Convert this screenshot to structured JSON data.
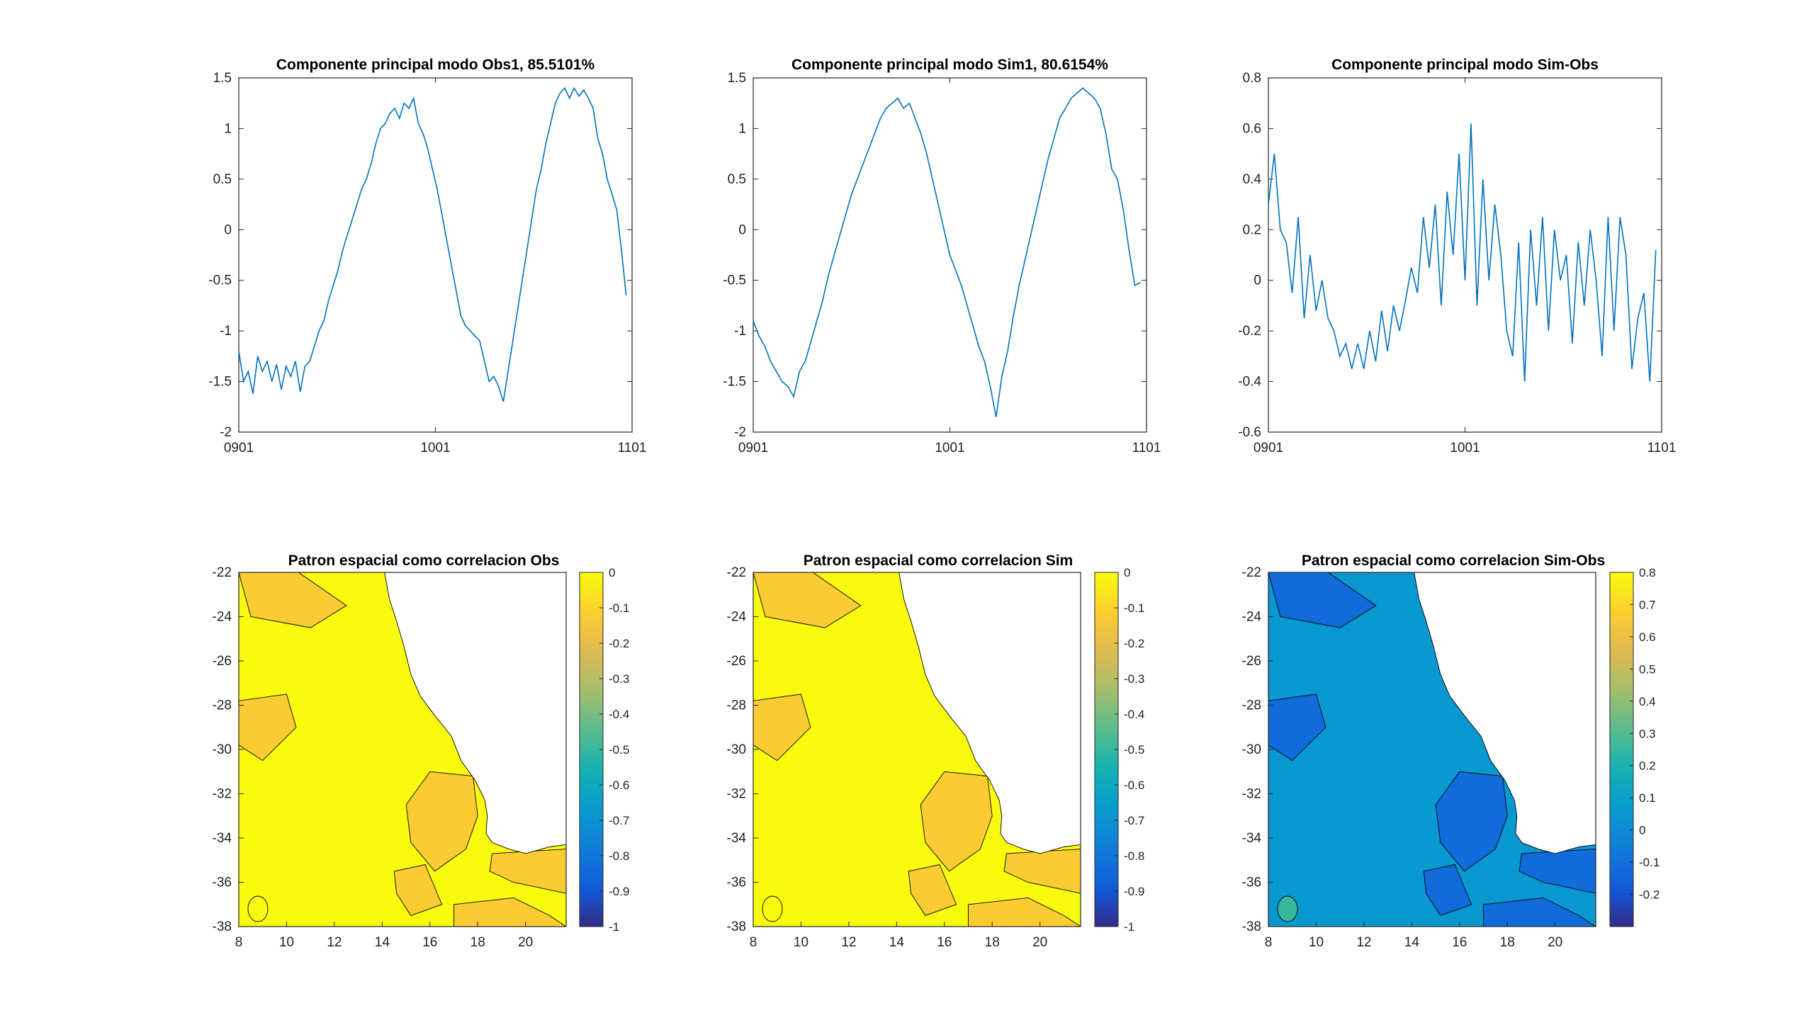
{
  "chart_data": [
    {
      "type": "line",
      "title": "Componente principal modo Obs1, 85.5101%",
      "xticks": [
        "0901",
        "1001",
        "1101"
      ],
      "ylim": [
        -2,
        1.5
      ],
      "yticks": [
        1.5,
        1,
        0.5,
        0,
        -0.5,
        -1,
        -1.5,
        -2
      ],
      "line_color": "#0072BD",
      "series": [
        {
          "x_start": "0901",
          "x_end": "1101",
          "values": [
            -1.2,
            -1.5,
            -1.4,
            -1.62,
            -1.25,
            -1.4,
            -1.3,
            -1.5,
            -1.33,
            -1.58,
            -1.35,
            -1.45,
            -1.3,
            -1.6,
            -1.35,
            -1.3,
            -1.15,
            -1.0,
            -0.9,
            -0.7,
            -0.55,
            -0.4,
            -0.2,
            -0.05,
            0.1,
            0.25,
            0.4,
            0.5,
            0.65,
            0.85,
            1.0,
            1.05,
            1.15,
            1.2,
            1.1,
            1.25,
            1.2,
            1.3,
            1.05,
            0.95,
            0.8,
            0.6,
            0.4,
            0.15,
            -0.1,
            -0.35,
            -0.6,
            -0.85,
            -0.95,
            -1.0,
            -1.05,
            -1.1,
            -1.3,
            -1.5,
            -1.45,
            -1.55,
            -1.7,
            -1.4,
            -1.1,
            -0.8,
            -0.5,
            -0.2,
            0.1,
            0.4,
            0.6,
            0.85,
            1.05,
            1.25,
            1.35,
            1.4,
            1.3,
            1.4,
            1.32,
            1.38,
            1.3,
            1.2,
            0.9,
            0.75,
            0.5,
            0.35,
            0.2,
            -0.2,
            -0.65
          ]
        }
      ]
    },
    {
      "type": "line",
      "title": "Componente principal modo Sim1, 80.6154%",
      "xticks": [
        "0901",
        "1001",
        "1101"
      ],
      "ylim": [
        -2,
        1.5
      ],
      "yticks": [
        1.5,
        1,
        0.5,
        0,
        -0.5,
        -1,
        -1.5,
        -2
      ],
      "line_color": "#0072BD",
      "series": [
        {
          "x_start": "0901",
          "x_end": "1101",
          "values": [
            -0.9,
            -1.05,
            -1.15,
            -1.3,
            -1.4,
            -1.5,
            -1.55,
            -1.65,
            -1.4,
            -1.3,
            -1.1,
            -0.9,
            -0.7,
            -0.45,
            -0.25,
            -0.05,
            0.15,
            0.35,
            0.5,
            0.65,
            0.8,
            0.95,
            1.1,
            1.2,
            1.25,
            1.3,
            1.2,
            1.25,
            1.1,
            0.95,
            0.75,
            0.5,
            0.25,
            0.0,
            -0.25,
            -0.4,
            -0.55,
            -0.75,
            -0.95,
            -1.15,
            -1.3,
            -1.55,
            -1.85,
            -1.45,
            -1.2,
            -0.85,
            -0.55,
            -0.3,
            -0.05,
            0.2,
            0.45,
            0.7,
            0.9,
            1.1,
            1.2,
            1.3,
            1.35,
            1.4,
            1.35,
            1.3,
            1.2,
            0.95,
            0.6,
            0.5,
            0.2,
            -0.2,
            -0.55,
            -0.52
          ]
        }
      ]
    },
    {
      "type": "line",
      "title": "Componente principal modo Sim-Obs",
      "xticks": [
        "0901",
        "1001",
        "1101"
      ],
      "ylim": [
        -0.6,
        0.8
      ],
      "yticks": [
        0.8,
        0.6,
        0.4,
        0.2,
        0,
        -0.2,
        -0.4,
        -0.6
      ],
      "line_color": "#0072BD",
      "series": [
        {
          "x_start": "0901",
          "x_end": "1101",
          "values": [
            0.3,
            0.5,
            0.2,
            0.15,
            -0.05,
            0.25,
            -0.15,
            0.1,
            -0.12,
            0.0,
            -0.15,
            -0.2,
            -0.3,
            -0.25,
            -0.35,
            -0.25,
            -0.35,
            -0.2,
            -0.32,
            -0.12,
            -0.28,
            -0.1,
            -0.2,
            -0.08,
            0.05,
            -0.05,
            0.25,
            0.05,
            0.3,
            -0.1,
            0.35,
            0.1,
            0.5,
            0.0,
            0.62,
            -0.1,
            0.4,
            0.0,
            0.3,
            0.1,
            -0.2,
            -0.3,
            0.15,
            -0.4,
            0.2,
            -0.1,
            0.25,
            -0.2,
            0.2,
            0.0,
            0.1,
            -0.25,
            0.15,
            -0.1,
            0.2,
            0.0,
            -0.3,
            0.25,
            -0.2,
            0.25,
            0.1,
            -0.35,
            -0.15,
            -0.05,
            -0.4,
            0.12
          ]
        }
      ]
    },
    {
      "type": "heatmap",
      "title": "Patron espacial como correlacion Obs",
      "xticks": [
        8,
        10,
        12,
        14,
        16,
        18,
        20
      ],
      "yticks": [
        -22,
        -24,
        -26,
        -28,
        -30,
        -32,
        -34,
        -36,
        -38
      ],
      "xlim": [
        8,
        21.7
      ],
      "ylim": [
        -38,
        -22
      ],
      "colorbar": {
        "ticks": [
          "0",
          "-0.1",
          "-0.2",
          "-0.3",
          "-0.4",
          "-0.5",
          "-0.6",
          "-0.7",
          "-0.8",
          "-0.9",
          "-1"
        ],
        "range": [
          -1,
          0
        ]
      }
    },
    {
      "type": "heatmap",
      "title": "Patron espacial como correlacion Sim",
      "xticks": [
        8,
        10,
        12,
        14,
        16,
        18,
        20
      ],
      "yticks": [
        -22,
        -24,
        -26,
        -28,
        -30,
        -32,
        -34,
        -36,
        -38
      ],
      "xlim": [
        8,
        21.7
      ],
      "ylim": [
        -38,
        -22
      ],
      "colorbar": {
        "ticks": [
          "0",
          "-0.1",
          "-0.2",
          "-0.3",
          "-0.4",
          "-0.5",
          "-0.6",
          "-0.7",
          "-0.8",
          "-0.9",
          "-1"
        ],
        "range": [
          -1,
          0
        ]
      }
    },
    {
      "type": "heatmap",
      "title": "Patron espacial como correlacion Sim-Obs",
      "xticks": [
        8,
        10,
        12,
        14,
        16,
        18,
        20
      ],
      "yticks": [
        -22,
        -24,
        -26,
        -28,
        -30,
        -32,
        -34,
        -36,
        -38
      ],
      "xlim": [
        8,
        21.7
      ],
      "ylim": [
        -38,
        -22
      ],
      "colorbar": {
        "ticks": [
          "0.8",
          "0.7",
          "0.6",
          "0.5",
          "0.4",
          "0.3",
          "0.2",
          "0.1",
          "0",
          "-0.1",
          "-0.2"
        ],
        "range": [
          -0.3,
          0.8
        ]
      }
    }
  ]
}
